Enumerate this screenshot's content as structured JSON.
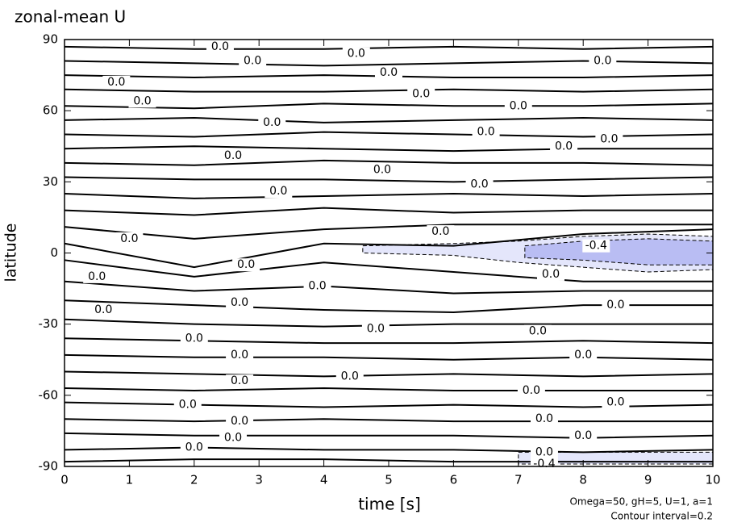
{
  "chart_data": {
    "type": "contour",
    "title": "zonal-mean U",
    "xlabel": "time [s]",
    "ylabel": "latitude",
    "notes": [
      "Omega=50, gH=5, U=1, a=1",
      "Contour interval=0.2"
    ],
    "xlim": [
      0,
      10
    ],
    "xticks": [
      0,
      1,
      2,
      3,
      4,
      5,
      6,
      7,
      8,
      9,
      10
    ],
    "ylim": [
      -90,
      90
    ],
    "yticks": [
      -90,
      -60,
      -30,
      0,
      30,
      60,
      90
    ],
    "contour_x": [
      0,
      2,
      4,
      6,
      8,
      10
    ],
    "contours": [
      {
        "level": 0,
        "lat": [
          87,
          86,
          86,
          87,
          86,
          87
        ]
      },
      {
        "level": 0,
        "lat": [
          81,
          80,
          79,
          80,
          81,
          80
        ]
      },
      {
        "level": 0,
        "lat": [
          75,
          74,
          75,
          74,
          74,
          75
        ]
      },
      {
        "level": 0,
        "lat": [
          69,
          68,
          68,
          69,
          68,
          69
        ]
      },
      {
        "level": 0,
        "lat": [
          62,
          61,
          63,
          62,
          62,
          63
        ]
      },
      {
        "level": 0,
        "lat": [
          56,
          57,
          55,
          56,
          57,
          56
        ]
      },
      {
        "level": 0,
        "lat": [
          50,
          49,
          51,
          50,
          49,
          50
        ]
      },
      {
        "level": 0,
        "lat": [
          44,
          45,
          44,
          43,
          44,
          44
        ]
      },
      {
        "level": 0,
        "lat": [
          38,
          37,
          39,
          38,
          38,
          37
        ]
      },
      {
        "level": 0,
        "lat": [
          32,
          31,
          31,
          30,
          31,
          32
        ]
      },
      {
        "level": 0,
        "lat": [
          25,
          23,
          24,
          25,
          24,
          25
        ]
      },
      {
        "level": 0,
        "lat": [
          18,
          16,
          19,
          17,
          18,
          18
        ]
      },
      {
        "level": 0,
        "lat": [
          11,
          6,
          10,
          12,
          12,
          12
        ]
      },
      {
        "level": 0,
        "lat": [
          4,
          -6,
          4,
          3,
          8,
          10
        ]
      },
      {
        "level": 0,
        "lat": [
          -3,
          -10,
          -4,
          -8,
          -12,
          -12
        ]
      },
      {
        "level": 0,
        "lat": [
          -12,
          -16,
          -14,
          -17,
          -16,
          -16
        ]
      },
      {
        "level": 0,
        "lat": [
          -20,
          -22,
          -24,
          -25,
          -22,
          -22
        ]
      },
      {
        "level": 0,
        "lat": [
          -28,
          -30,
          -31,
          -30,
          -30,
          -30
        ]
      },
      {
        "level": 0,
        "lat": [
          -36,
          -37,
          -38,
          -38,
          -37,
          -38
        ]
      },
      {
        "level": 0,
        "lat": [
          -43,
          -44,
          -44,
          -45,
          -44,
          -45
        ]
      },
      {
        "level": 0,
        "lat": [
          -50,
          -51,
          -52,
          -51,
          -52,
          -51
        ]
      },
      {
        "level": 0,
        "lat": [
          -57,
          -58,
          -57,
          -58,
          -58,
          -58
        ]
      },
      {
        "level": 0,
        "lat": [
          -63,
          -64,
          -65,
          -64,
          -65,
          -64
        ]
      },
      {
        "level": 0,
        "lat": [
          -70,
          -71,
          -70,
          -71,
          -71,
          -71
        ]
      },
      {
        "level": 0,
        "lat": [
          -76,
          -77,
          -77,
          -77,
          -78,
          -77
        ]
      },
      {
        "level": 0,
        "lat": [
          -83,
          -82,
          -83,
          -83,
          -84,
          -83
        ]
      },
      {
        "level": 0,
        "lat": [
          -88,
          -87,
          -87,
          -88,
          -88,
          -88
        ]
      }
    ],
    "regions": [
      {
        "level": -0.2,
        "color": "#e4e6fb",
        "x": [
          4.6,
          6,
          7,
          8,
          9,
          10,
          10,
          9,
          8,
          7,
          6,
          4.6
        ],
        "y": [
          3,
          4,
          5,
          7,
          8,
          7,
          -7,
          -8,
          -6,
          -4,
          -1,
          0
        ]
      },
      {
        "level": -0.4,
        "color": "#b9bdf3",
        "x": [
          7.1,
          8,
          9,
          10,
          10,
          9,
          8,
          7.1
        ],
        "y": [
          3,
          5,
          6,
          5,
          -5,
          -5,
          -3,
          -2
        ]
      },
      {
        "level": -0.2,
        "color": "#e4e6fb",
        "x": [
          7,
          10,
          10,
          7
        ],
        "y": [
          -84,
          -84,
          -89,
          -89
        ]
      }
    ],
    "contour_labels": [
      {
        "text": "0.0",
        "x": 2.4,
        "y": 87
      },
      {
        "text": "0.0",
        "x": 2.9,
        "y": 81
      },
      {
        "text": "0.0",
        "x": 4.5,
        "y": 84
      },
      {
        "text": "0.0",
        "x": 5,
        "y": 76
      },
      {
        "text": "0.0",
        "x": 8.3,
        "y": 81
      },
      {
        "text": "0.0",
        "x": 0.8,
        "y": 72
      },
      {
        "text": "0.0",
        "x": 1.2,
        "y": 64
      },
      {
        "text": "0.0",
        "x": 5.5,
        "y": 67
      },
      {
        "text": "0.0",
        "x": 7,
        "y": 62
      },
      {
        "text": "0.0",
        "x": 3.2,
        "y": 55
      },
      {
        "text": "0.0",
        "x": 6.5,
        "y": 51
      },
      {
        "text": "0.0",
        "x": 7.7,
        "y": 45
      },
      {
        "text": "0.0",
        "x": 2.6,
        "y": 41
      },
      {
        "text": "0.0",
        "x": 4.9,
        "y": 35
      },
      {
        "text": "0.0",
        "x": 8.4,
        "y": 48
      },
      {
        "text": "0.0",
        "x": 3.3,
        "y": 26
      },
      {
        "text": "0.0",
        "x": 6.4,
        "y": 29
      },
      {
        "text": "0.0",
        "x": 1,
        "y": 6
      },
      {
        "text": "0.0",
        "x": 5.8,
        "y": 9
      },
      {
        "text": "-0.4",
        "x": 8.2,
        "y": 3
      },
      {
        "text": "0.0",
        "x": 0.5,
        "y": -10
      },
      {
        "text": "0.0",
        "x": 2.8,
        "y": -5
      },
      {
        "text": "0.0",
        "x": 3.9,
        "y": -14
      },
      {
        "text": "0.0",
        "x": 7.5,
        "y": -9
      },
      {
        "text": "0.0",
        "x": 0.6,
        "y": -24
      },
      {
        "text": "0.0",
        "x": 2.7,
        "y": -21
      },
      {
        "text": "0.0",
        "x": 8.5,
        "y": -22
      },
      {
        "text": "0.0",
        "x": 2,
        "y": -36
      },
      {
        "text": "0.0",
        "x": 4.8,
        "y": -32
      },
      {
        "text": "0.0",
        "x": 7.3,
        "y": -33
      },
      {
        "text": "0.0",
        "x": 2.7,
        "y": -43
      },
      {
        "text": "0.0",
        "x": 8,
        "y": -43
      },
      {
        "text": "0.0",
        "x": 4.4,
        "y": -52
      },
      {
        "text": "0.0",
        "x": 2.7,
        "y": -54
      },
      {
        "text": "0.0",
        "x": 7.2,
        "y": -58
      },
      {
        "text": "0.0",
        "x": 8.5,
        "y": -63
      },
      {
        "text": "0.0",
        "x": 1.9,
        "y": -64
      },
      {
        "text": "0.0",
        "x": 2.7,
        "y": -71
      },
      {
        "text": "0.0",
        "x": 7.4,
        "y": -70
      },
      {
        "text": "0.0",
        "x": 2.6,
        "y": -78
      },
      {
        "text": "0.0",
        "x": 8,
        "y": -77
      },
      {
        "text": "0.0",
        "x": 2,
        "y": -82
      },
      {
        "text": "0.0",
        "x": 7.4,
        "y": -84
      },
      {
        "text": "-0.4",
        "x": 7.4,
        "y": -89
      }
    ]
  }
}
